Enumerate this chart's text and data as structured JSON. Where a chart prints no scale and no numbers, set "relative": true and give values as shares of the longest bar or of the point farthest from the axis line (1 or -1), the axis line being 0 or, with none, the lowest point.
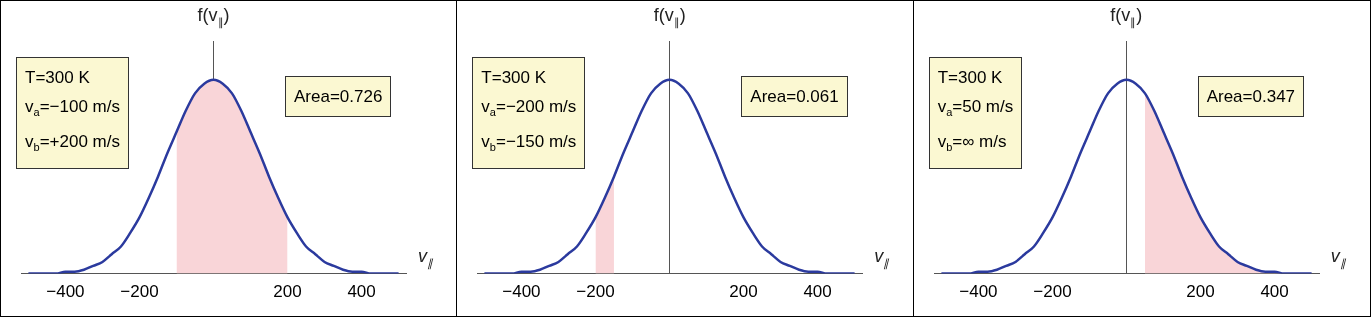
{
  "chart_data": [
    {
      "type": "line",
      "xlabel": "v$_{∥}$",
      "ylabel": "f(v$_{∥}$)",
      "relative": true,
      "xlim": [
        -520,
        520
      ],
      "xticks": [
        -400,
        -200,
        200,
        400
      ],
      "series": [
        {
          "type": "area",
          "color": "#f9d5d8",
          "x": [
            -100,
            -75,
            -50,
            -25,
            0,
            25,
            50,
            75,
            100,
            125,
            150,
            175,
            200
          ],
          "values": [
            0.73,
            0.84,
            0.93,
            0.98,
            1,
            0.98,
            0.93,
            0.84,
            0.73,
            0.62,
            0.5,
            0.39,
            0.29
          ]
        },
        {
          "type": "line",
          "color": "#2b3a9e",
          "x": [
            -500,
            -475,
            -450,
            -425,
            -400,
            -375,
            -350,
            -325,
            -300,
            -275,
            -250,
            -225,
            -200,
            -175,
            -150,
            -125,
            -100,
            -75,
            -50,
            -25,
            0,
            25,
            50,
            75,
            100,
            125,
            150,
            175,
            200,
            225,
            250,
            275,
            300,
            325,
            350,
            375,
            400,
            425,
            450,
            475,
            500
          ],
          "values": [
            0,
            0,
            0,
            0,
            0.01,
            0.01,
            0.02,
            0.04,
            0.06,
            0.1,
            0.14,
            0.21,
            0.29,
            0.39,
            0.5,
            0.62,
            0.73,
            0.84,
            0.93,
            0.98,
            1,
            0.98,
            0.93,
            0.84,
            0.73,
            0.62,
            0.5,
            0.39,
            0.29,
            0.21,
            0.14,
            0.1,
            0.06,
            0.04,
            0.02,
            0.01,
            0.01,
            0,
            0,
            0,
            0
          ]
        }
      ],
      "annotations": [
        "T=300 K\nv$_{a}$=−100 m/s\nv$_{b}$=+200 m/s",
        "Area=0.726"
      ]
    },
    {
      "type": "line",
      "xlabel": "v$_{∥}$",
      "ylabel": "f(v$_{∥}$)",
      "relative": true,
      "xlim": [
        -520,
        520
      ],
      "xticks": [
        -400,
        -200,
        200,
        400
      ],
      "series": [
        {
          "type": "area",
          "color": "#f9d5d8",
          "x": [
            -200,
            -175,
            -150
          ],
          "values": [
            0.29,
            0.39,
            0.5
          ]
        },
        {
          "type": "line",
          "color": "#2b3a9e",
          "x": [
            -500,
            -475,
            -450,
            -425,
            -400,
            -375,
            -350,
            -325,
            -300,
            -275,
            -250,
            -225,
            -200,
            -175,
            -150,
            -125,
            -100,
            -75,
            -50,
            -25,
            0,
            25,
            50,
            75,
            100,
            125,
            150,
            175,
            200,
            225,
            250,
            275,
            300,
            325,
            350,
            375,
            400,
            425,
            450,
            475,
            500
          ],
          "values": [
            0,
            0,
            0,
            0,
            0.01,
            0.01,
            0.02,
            0.04,
            0.06,
            0.1,
            0.14,
            0.21,
            0.29,
            0.39,
            0.5,
            0.62,
            0.73,
            0.84,
            0.93,
            0.98,
            1,
            0.98,
            0.93,
            0.84,
            0.73,
            0.62,
            0.5,
            0.39,
            0.29,
            0.21,
            0.14,
            0.1,
            0.06,
            0.04,
            0.02,
            0.01,
            0.01,
            0,
            0,
            0,
            0
          ]
        }
      ],
      "annotations": [
        "T=300 K\nv$_{a}$=−200 m/s\nv$_{b}$=−150 m/s",
        "Area=0.061"
      ]
    },
    {
      "type": "line",
      "xlabel": "v$_{∥}$",
      "ylabel": "f(v$_{∥}$)",
      "relative": true,
      "xlim": [
        -520,
        520
      ],
      "xticks": [
        -400,
        -200,
        200,
        400
      ],
      "series": [
        {
          "type": "area",
          "color": "#f9d5d8",
          "x": [
            50,
            75,
            100,
            125,
            150,
            175,
            200,
            225,
            250,
            275,
            300,
            325,
            350,
            375,
            400,
            425,
            450,
            475,
            500
          ],
          "values": [
            0.93,
            0.84,
            0.73,
            0.62,
            0.5,
            0.39,
            0.29,
            0.21,
            0.14,
            0.1,
            0.06,
            0.04,
            0.02,
            0.01,
            0.01,
            0,
            0,
            0,
            0
          ]
        },
        {
          "type": "line",
          "color": "#2b3a9e",
          "x": [
            -500,
            -475,
            -450,
            -425,
            -400,
            -375,
            -350,
            -325,
            -300,
            -275,
            -250,
            -225,
            -200,
            -175,
            -150,
            -125,
            -100,
            -75,
            -50,
            -25,
            0,
            25,
            50,
            75,
            100,
            125,
            150,
            175,
            200,
            225,
            250,
            275,
            300,
            325,
            350,
            375,
            400,
            425,
            450,
            475,
            500
          ],
          "values": [
            0,
            0,
            0,
            0,
            0.01,
            0.01,
            0.02,
            0.04,
            0.06,
            0.1,
            0.14,
            0.21,
            0.29,
            0.39,
            0.5,
            0.62,
            0.73,
            0.84,
            0.93,
            0.98,
            1,
            0.98,
            0.93,
            0.84,
            0.73,
            0.62,
            0.5,
            0.39,
            0.29,
            0.21,
            0.14,
            0.1,
            0.06,
            0.04,
            0.02,
            0.01,
            0.01,
            0,
            0,
            0,
            0
          ]
        }
      ],
      "annotations": [
        "T=300 K\nv$_{a}$=50 m/s\nv$_{b}$=∞ m/s",
        "Area=0.347"
      ]
    }
  ]
}
